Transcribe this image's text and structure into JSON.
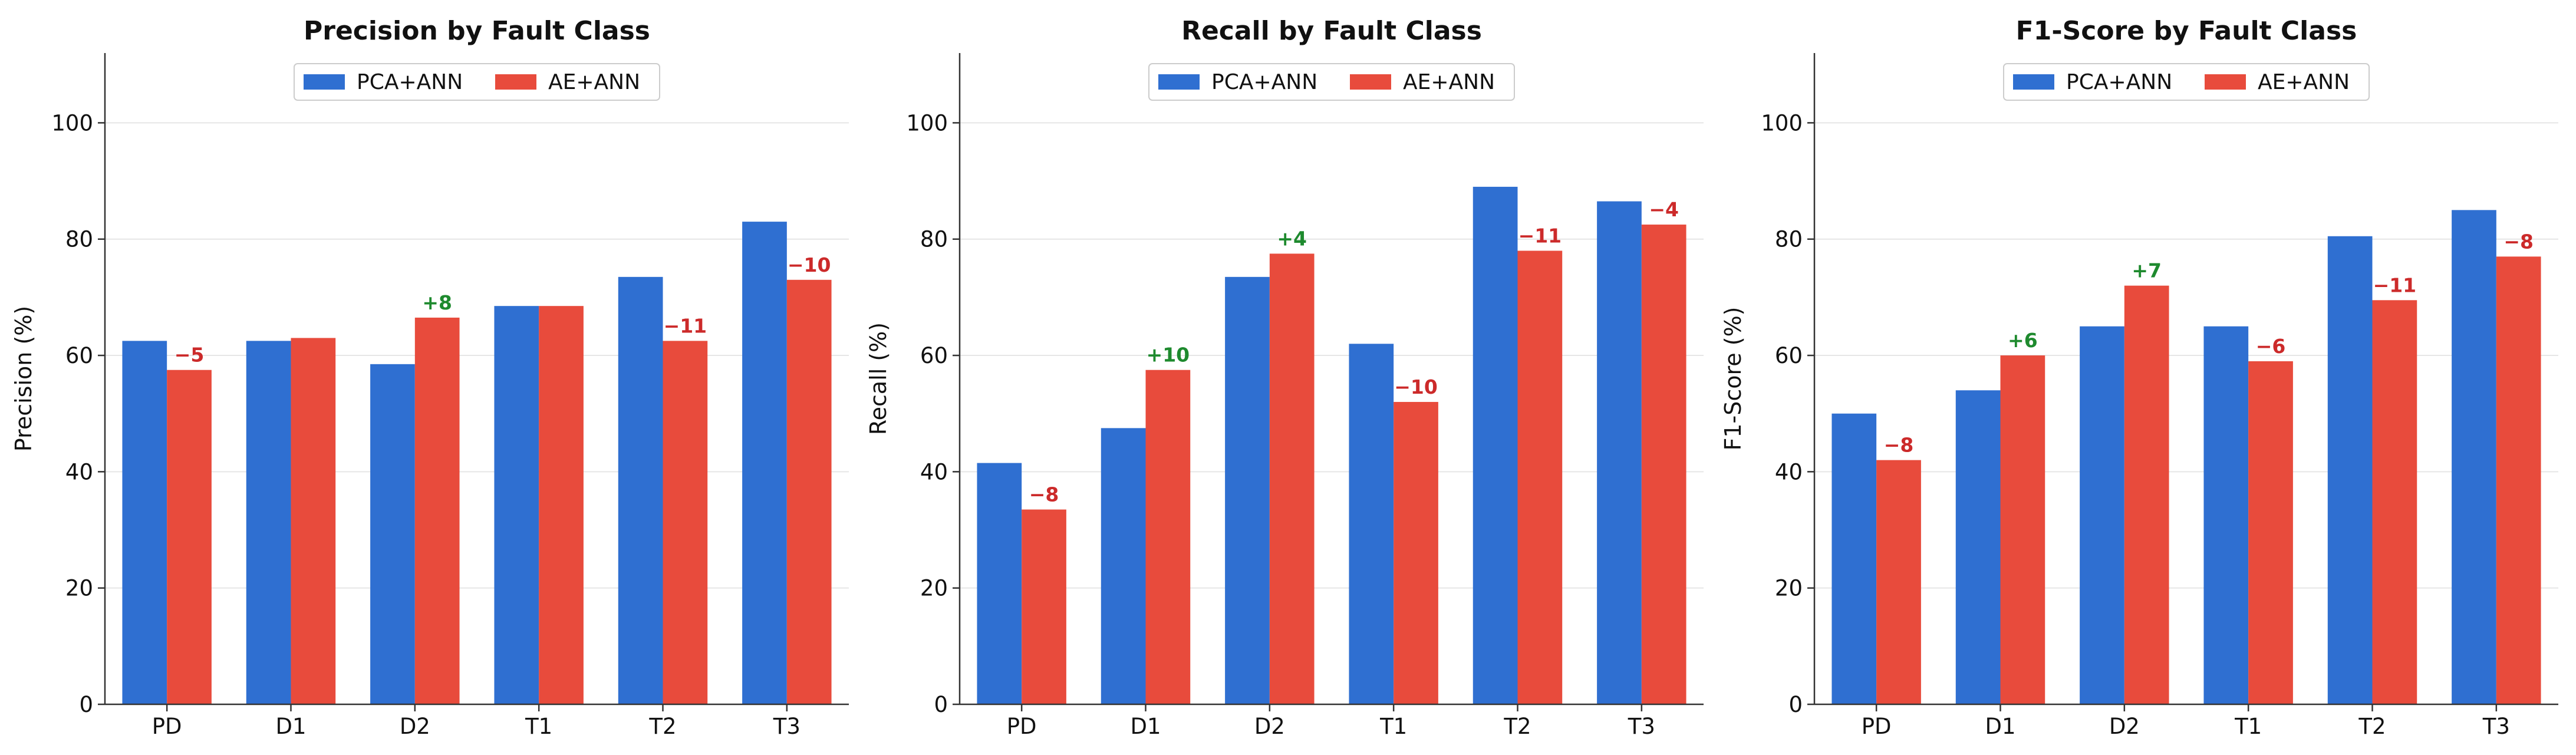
{
  "colors": {
    "pca": "#2f6fd1",
    "ae": "#e84b3c",
    "positive": "#1e8a2e",
    "negative": "#cc2a2a",
    "grid": "#e6e6e6",
    "axis": "#333333"
  },
  "chart_data": [
    {
      "type": "bar",
      "title": "Precision by Fault Class",
      "xlabel": "",
      "ylabel": "Precision (%)",
      "ylim": [
        0,
        112
      ],
      "yticks": [
        0,
        20,
        40,
        60,
        80,
        100
      ],
      "grid": "horizontal",
      "legend": "top-center",
      "categories": [
        "PD",
        "D1",
        "D2",
        "T1",
        "T2",
        "T3"
      ],
      "series": [
        {
          "name": "PCA+ANN",
          "values": [
            62.5,
            62.5,
            58.5,
            68.5,
            73.5,
            83
          ]
        },
        {
          "name": "AE+ANN",
          "values": [
            57.5,
            63,
            66.5,
            68.5,
            62.5,
            73
          ]
        }
      ],
      "annotations": [
        "−5",
        "",
        "+8",
        "",
        "−11",
        "−10"
      ]
    },
    {
      "type": "bar",
      "title": "Recall by Fault Class",
      "xlabel": "",
      "ylabel": "Recall (%)",
      "ylim": [
        0,
        112
      ],
      "yticks": [
        0,
        20,
        40,
        60,
        80,
        100
      ],
      "grid": "horizontal",
      "legend": "top-center",
      "categories": [
        "PD",
        "D1",
        "D2",
        "T1",
        "T2",
        "T3"
      ],
      "series": [
        {
          "name": "PCA+ANN",
          "values": [
            41.5,
            47.5,
            73.5,
            62,
            89,
            86.5
          ]
        },
        {
          "name": "AE+ANN",
          "values": [
            33.5,
            57.5,
            77.5,
            52,
            78,
            82.5
          ]
        }
      ],
      "annotations": [
        "−8",
        "+10",
        "+4",
        "−10",
        "−11",
        "−4"
      ]
    },
    {
      "type": "bar",
      "title": "F1-Score by Fault Class",
      "xlabel": "",
      "ylabel": "F1-Score (%)",
      "ylim": [
        0,
        112
      ],
      "yticks": [
        0,
        20,
        40,
        60,
        80,
        100
      ],
      "grid": "horizontal",
      "legend": "top-center",
      "categories": [
        "PD",
        "D1",
        "D2",
        "T1",
        "T2",
        "T3"
      ],
      "series": [
        {
          "name": "PCA+ANN",
          "values": [
            50,
            54,
            65,
            65,
            80.5,
            85
          ]
        },
        {
          "name": "AE+ANN",
          "values": [
            42,
            60,
            72,
            59,
            69.5,
            77
          ]
        }
      ],
      "annotations": [
        "−8",
        "+6",
        "+7",
        "−6",
        "−11",
        "−8"
      ]
    }
  ]
}
